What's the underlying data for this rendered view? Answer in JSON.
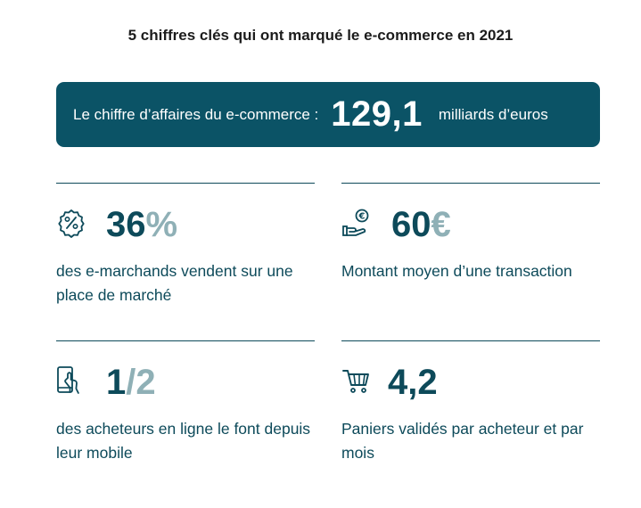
{
  "title": "5 chiffres clés qui ont marqué le e-commerce en 2021",
  "banner": {
    "label": "Le chiffre d’affaires du e-commerce :",
    "value": "129,1",
    "unit": "milliards d’euros"
  },
  "stats": [
    {
      "value_main": "36",
      "value_accent": "%",
      "description": "des e-marchands vendent sur une place de marché",
      "icon": "percent-badge-icon"
    },
    {
      "value_main": "60",
      "value_accent": "€",
      "description": "Montant moyen d’une transaction",
      "icon": "euro-hand-icon"
    },
    {
      "value_main": "1",
      "value_accent": "/2",
      "description": "des acheteurs en ligne le font depuis leur mobile",
      "icon": "mobile-tap-icon"
    },
    {
      "value_main": "4,2",
      "value_accent": "",
      "description": "Paniers validés par acheteur et par mois",
      "icon": "shopping-cart-icon"
    }
  ],
  "colors": {
    "primary": "#0b5366",
    "text": "#0d4a5a",
    "accent": "#8fb0b6"
  }
}
